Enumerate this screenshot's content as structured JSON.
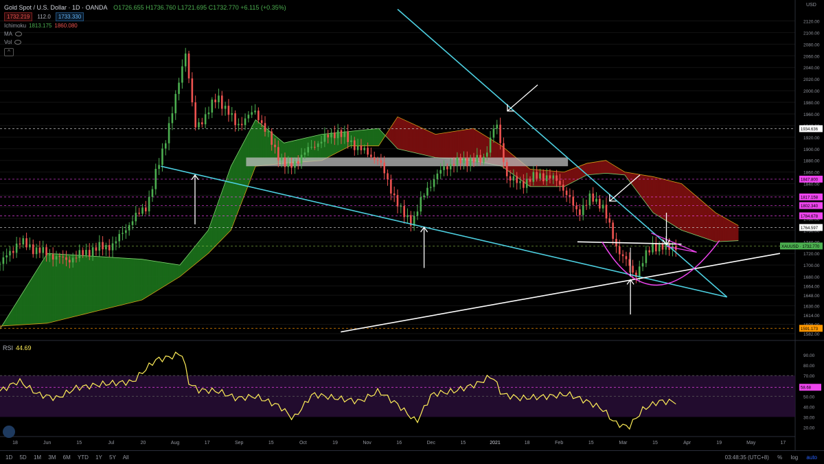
{
  "header": {
    "title": "Gold Spot / U.S. Dollar · 1D · OANDA",
    "ohlc": "O1726.655 H1736.760 L1721.695 C1732.770 +6.115 (+0.35%)",
    "bid": "1732.219",
    "spread": "112.0",
    "ask": "1733.330"
  },
  "indicators": {
    "ichimoku_label": "Ichimoku",
    "ichimoku_a": "1813.175",
    "ichimoku_b": "1860.080",
    "ma_label": "MA",
    "vol_label": "Vol",
    "rsi_label": "RSI",
    "rsi_value": "44.69"
  },
  "currency": "USD",
  "colors": {
    "up": "#4caf50",
    "down": "#ef5350",
    "cloud_bull": "#1b6e1b",
    "cloud_bear": "#7a0f0f",
    "trendline": "#4dd0e1",
    "white_line": "#ffffff",
    "magenta": "#ee44ee",
    "rsi": "#ffee58",
    "rsi_band": "#2a0f3a"
  },
  "chart_data": {
    "type": "candlestick",
    "title": "Gold Spot / U.S. Dollar",
    "ylim": [
      1575,
      2130
    ],
    "y_ticks": [
      2120,
      2100,
      2080,
      2060,
      2040,
      2020,
      2000,
      1980,
      1960,
      1940,
      1920,
      1900,
      1880,
      1860,
      1840,
      1820,
      1800,
      1780,
      1760,
      1740,
      1720,
      1700,
      1680,
      1664,
      1648,
      1630,
      1614,
      1598,
      1582
    ],
    "x_ticks": [
      "18",
      "Jun",
      "15",
      "Jul",
      "20",
      "Aug",
      "17",
      "Sep",
      "15",
      "Oct",
      "19",
      "Nov",
      "16",
      "Dec",
      "15",
      "2021",
      "18",
      "Feb",
      "15",
      "Mar",
      "15",
      "Apr",
      "19",
      "May",
      "17"
    ],
    "close_path": [
      {
        "d": 0,
        "c": 1702
      },
      {
        "d": 10,
        "c": 1740
      },
      {
        "d": 20,
        "c": 1725
      },
      {
        "d": 35,
        "c": 1708
      },
      {
        "d": 50,
        "c": 1728
      },
      {
        "d": 60,
        "c": 1735
      },
      {
        "d": 68,
        "c": 1770
      },
      {
        "d": 78,
        "c": 1805
      },
      {
        "d": 86,
        "c": 1900
      },
      {
        "d": 92,
        "c": 1975
      },
      {
        "d": 96,
        "c": 2040
      },
      {
        "d": 98,
        "c": 2068
      },
      {
        "d": 103,
        "c": 1935
      },
      {
        "d": 108,
        "c": 1955
      },
      {
        "d": 115,
        "c": 1990
      },
      {
        "d": 125,
        "c": 1940
      },
      {
        "d": 135,
        "c": 1965
      },
      {
        "d": 145,
        "c": 1900
      },
      {
        "d": 152,
        "c": 1865
      },
      {
        "d": 165,
        "c": 1905
      },
      {
        "d": 178,
        "c": 1930
      },
      {
        "d": 190,
        "c": 1900
      },
      {
        "d": 200,
        "c": 1880
      },
      {
        "d": 212,
        "c": 1790
      },
      {
        "d": 218,
        "c": 1775
      },
      {
        "d": 225,
        "c": 1830
      },
      {
        "d": 235,
        "c": 1870
      },
      {
        "d": 245,
        "c": 1880
      },
      {
        "d": 255,
        "c": 1880
      },
      {
        "d": 262,
        "c": 1945
      },
      {
        "d": 268,
        "c": 1850
      },
      {
        "d": 275,
        "c": 1840
      },
      {
        "d": 285,
        "c": 1855
      },
      {
        "d": 295,
        "c": 1845
      },
      {
        "d": 305,
        "c": 1790
      },
      {
        "d": 312,
        "c": 1815
      },
      {
        "d": 318,
        "c": 1805
      },
      {
        "d": 325,
        "c": 1735
      },
      {
        "d": 332,
        "c": 1700
      },
      {
        "d": 335,
        "c": 1680
      },
      {
        "d": 340,
        "c": 1710
      },
      {
        "d": 345,
        "c": 1735
      },
      {
        "d": 352,
        "c": 1728
      },
      {
        "d": 357,
        "c": 1733
      }
    ],
    "cloud": [
      {
        "d": 0,
        "a": 1590,
        "b": 1595
      },
      {
        "d": 25,
        "a": 1720,
        "b": 1600
      },
      {
        "d": 50,
        "a": 1715,
        "b": 1620
      },
      {
        "d": 75,
        "a": 1710,
        "b": 1640
      },
      {
        "d": 95,
        "a": 1700,
        "b": 1680
      },
      {
        "d": 110,
        "a": 1760,
        "b": 1720
      },
      {
        "d": 122,
        "a": 1870,
        "b": 1760
      },
      {
        "d": 135,
        "a": 1950,
        "b": 1870
      },
      {
        "d": 150,
        "a": 1910,
        "b": 1875
      },
      {
        "d": 170,
        "a": 1925,
        "b": 1880
      },
      {
        "d": 185,
        "a": 1930,
        "b": 1905
      },
      {
        "d": 200,
        "a": 1935,
        "b": 1905
      },
      {
        "d": 210,
        "a": 1900,
        "b": 1955
      },
      {
        "d": 230,
        "a": 1885,
        "b": 1925
      },
      {
        "d": 250,
        "a": 1880,
        "b": 1935
      },
      {
        "d": 265,
        "a": 1870,
        "b": 1905
      },
      {
        "d": 280,
        "a": 1835,
        "b": 1865
      },
      {
        "d": 298,
        "a": 1835,
        "b": 1860
      },
      {
        "d": 310,
        "a": 1855,
        "b": 1875
      },
      {
        "d": 320,
        "a": 1858,
        "b": 1880
      },
      {
        "d": 330,
        "a": 1855,
        "b": 1860
      },
      {
        "d": 345,
        "a": 1790,
        "b": 1852
      },
      {
        "d": 360,
        "a": 1760,
        "b": 1840
      },
      {
        "d": 378,
        "a": 1740,
        "b": 1790
      },
      {
        "d": 390,
        "a": 1742,
        "b": 1768
      }
    ],
    "h_levels": [
      {
        "value": 1934.636,
        "label": "1934.636",
        "style": "white",
        "dash": true
      },
      {
        "value": 1847.8,
        "label": "1847.800",
        "style": "magenta",
        "dash": true
      },
      {
        "value": 1817.158,
        "label": "1817.158",
        "style": "magenta",
        "dash": true
      },
      {
        "value": 1802.34,
        "label": "1802.340",
        "style": "magenta",
        "dash": true
      },
      {
        "value": 1784.678,
        "label": "1784.678",
        "style": "magenta",
        "dash": true
      },
      {
        "value": 1764.597,
        "label": "1764.597",
        "style": "white",
        "dash": true
      },
      {
        "value": 1732.77,
        "label": "XAUUSD · 1732.770",
        "style": "last",
        "dash": true
      },
      {
        "value": 1591.173,
        "label": "1591.173",
        "style": "orange",
        "dash": true
      }
    ],
    "zone": {
      "d0": 130,
      "d1": 300,
      "y0": 1870,
      "y1": 1885
    },
    "trendlines": [
      {
        "d0": 85,
        "v0": 1870,
        "d1": 384,
        "v1": 1645,
        "color": "cyan"
      },
      {
        "d0": 210,
        "v0": 2140,
        "d1": 384,
        "v1": 1645,
        "color": "cyan"
      },
      {
        "d0": 180,
        "v0": 1585,
        "d1": 412,
        "v1": 1720,
        "color": "white"
      },
      {
        "d0": 305,
        "v0": 1740,
        "d1": 360,
        "v1": 1736,
        "color": "white"
      }
    ],
    "arrows": [
      {
        "d": 103,
        "from": 1770,
        "to": 1855,
        "dir": "up"
      },
      {
        "d": 224,
        "from": 1695,
        "to": 1765,
        "dir": "up"
      },
      {
        "d": 333,
        "from": 1615,
        "to": 1675,
        "dir": "up"
      },
      {
        "d": 352,
        "from": 1790,
        "to": 1735,
        "dir": "down"
      }
    ],
    "diag_arrows": [
      {
        "d0": 284,
        "v0": 2010,
        "d1": 268,
        "v1": 1965
      },
      {
        "d0": 338,
        "v0": 1855,
        "d1": 322,
        "v1": 1810
      }
    ],
    "rsi": {
      "ylim": [
        15,
        100
      ],
      "y_ticks": [
        90,
        80,
        70,
        60,
        50,
        40,
        30,
        20
      ],
      "band": [
        30,
        70
      ],
      "levels": [
        {
          "value": 70
        },
        {
          "value": 58.68,
          "label": "58.68"
        },
        {
          "value": 50
        }
      ],
      "path": [
        {
          "d": 0,
          "v": 55
        },
        {
          "d": 10,
          "v": 65
        },
        {
          "d": 20,
          "v": 52
        },
        {
          "d": 30,
          "v": 48
        },
        {
          "d": 40,
          "v": 58
        },
        {
          "d": 55,
          "v": 62
        },
        {
          "d": 70,
          "v": 64
        },
        {
          "d": 82,
          "v": 85
        },
        {
          "d": 90,
          "v": 88
        },
        {
          "d": 96,
          "v": 92
        },
        {
          "d": 100,
          "v": 62
        },
        {
          "d": 105,
          "v": 56
        },
        {
          "d": 115,
          "v": 55
        },
        {
          "d": 125,
          "v": 48
        },
        {
          "d": 135,
          "v": 50
        },
        {
          "d": 148,
          "v": 40
        },
        {
          "d": 155,
          "v": 28
        },
        {
          "d": 165,
          "v": 52
        },
        {
          "d": 178,
          "v": 48
        },
        {
          "d": 190,
          "v": 45
        },
        {
          "d": 200,
          "v": 55
        },
        {
          "d": 210,
          "v": 42
        },
        {
          "d": 220,
          "v": 25
        },
        {
          "d": 228,
          "v": 52
        },
        {
          "d": 240,
          "v": 55
        },
        {
          "d": 252,
          "v": 62
        },
        {
          "d": 260,
          "v": 70
        },
        {
          "d": 265,
          "v": 52
        },
        {
          "d": 275,
          "v": 48
        },
        {
          "d": 290,
          "v": 50
        },
        {
          "d": 300,
          "v": 52
        },
        {
          "d": 310,
          "v": 45
        },
        {
          "d": 318,
          "v": 38
        },
        {
          "d": 325,
          "v": 24
        },
        {
          "d": 332,
          "v": 20
        },
        {
          "d": 340,
          "v": 38
        },
        {
          "d": 348,
          "v": 45
        },
        {
          "d": 357,
          "v": 44.69
        }
      ]
    }
  },
  "timeframes": [
    "1D",
    "5D",
    "1M",
    "3M",
    "6M",
    "YTD",
    "1Y",
    "5Y",
    "All"
  ],
  "status": {
    "clock": "03:48:35 (UTC+8)",
    "percent": "%",
    "log": "log",
    "auto": "auto"
  }
}
